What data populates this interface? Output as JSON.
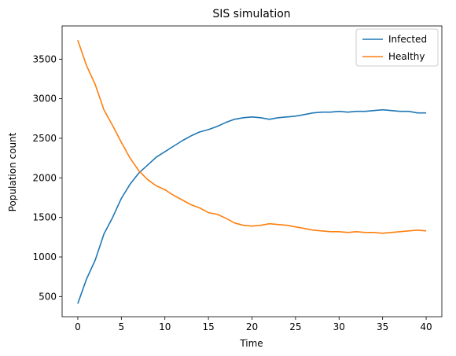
{
  "chart_data": {
    "type": "line",
    "title": "SIS simulation",
    "xlabel": "Time",
    "ylabel": "Population count",
    "xlim": [
      -1.8,
      41.8
    ],
    "ylim": [
      245,
      3920
    ],
    "xticks": [
      0,
      5,
      10,
      15,
      20,
      25,
      30,
      35,
      40
    ],
    "yticks": [
      500,
      1000,
      1500,
      2000,
      2500,
      3000,
      3500
    ],
    "legend_position": "top-right",
    "grid": false,
    "series": [
      {
        "name": "Infected",
        "color": "#1f77b4",
        "x": [
          0,
          1,
          2,
          3,
          4,
          5,
          6,
          7,
          8,
          9,
          10,
          11,
          12,
          13,
          14,
          15,
          16,
          17,
          18,
          19,
          20,
          21,
          22,
          23,
          24,
          25,
          26,
          27,
          28,
          29,
          30,
          31,
          32,
          33,
          34,
          35,
          36,
          37,
          38,
          39,
          40
        ],
        "values": [
          410,
          720,
          960,
          1290,
          1500,
          1740,
          1920,
          2060,
          2160,
          2260,
          2330,
          2400,
          2470,
          2530,
          2580,
          2610,
          2650,
          2700,
          2740,
          2760,
          2770,
          2760,
          2740,
          2760,
          2770,
          2780,
          2800,
          2820,
          2830,
          2830,
          2840,
          2830,
          2840,
          2840,
          2850,
          2860,
          2850,
          2840,
          2840,
          2820,
          2820
        ]
      },
      {
        "name": "Healthy",
        "color": "#ff7f0e",
        "x": [
          0,
          1,
          2,
          3,
          4,
          5,
          6,
          7,
          8,
          9,
          10,
          11,
          12,
          13,
          14,
          15,
          16,
          17,
          18,
          19,
          20,
          21,
          22,
          23,
          24,
          25,
          26,
          27,
          28,
          29,
          30,
          31,
          32,
          33,
          34,
          35,
          36,
          37,
          38,
          39,
          40
        ],
        "values": [
          3740,
          3420,
          3180,
          2860,
          2660,
          2450,
          2250,
          2090,
          1980,
          1900,
          1850,
          1780,
          1720,
          1660,
          1620,
          1560,
          1540,
          1490,
          1430,
          1400,
          1390,
          1400,
          1420,
          1410,
          1400,
          1380,
          1360,
          1340,
          1330,
          1320,
          1320,
          1310,
          1320,
          1310,
          1310,
          1300,
          1310,
          1320,
          1330,
          1340,
          1330
        ]
      }
    ]
  }
}
